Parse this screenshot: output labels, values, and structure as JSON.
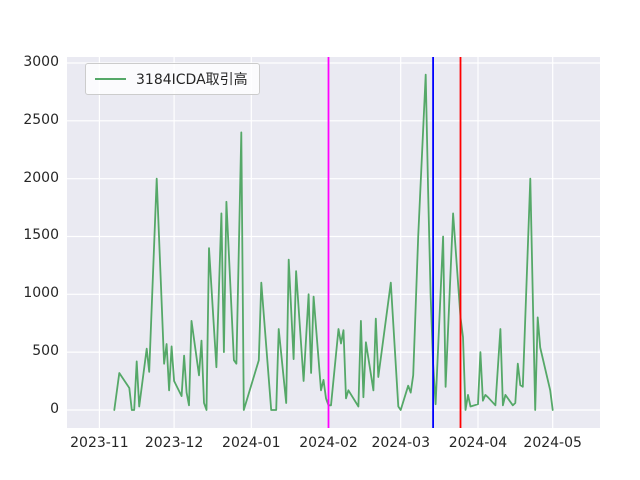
{
  "legend": {
    "label": "3184ICDA取引高",
    "line_color": "#55a868",
    "position": "upper left"
  },
  "chart_data": {
    "type": "line",
    "title": "",
    "xlabel": "",
    "ylabel": "",
    "x_axis": "date",
    "grid": true,
    "background": "#eaeaf2",
    "grid_color": "#ffffff",
    "tick_color": "#262626",
    "xlim": [
      "2023-10-19",
      "2024-05-20"
    ],
    "ylim": [
      -156,
      3052
    ],
    "y_ticks": [
      0,
      500,
      1000,
      1500,
      2000,
      2500,
      3000
    ],
    "x_ticks": [
      {
        "date": "2023-11-01",
        "label": "2023-11"
      },
      {
        "date": "2023-12-01",
        "label": "2023-12"
      },
      {
        "date": "2024-01-01",
        "label": "2024-01"
      },
      {
        "date": "2024-02-01",
        "label": "2024-02"
      },
      {
        "date": "2024-03-01",
        "label": "2024-03"
      },
      {
        "date": "2024-04-01",
        "label": "2024-04"
      },
      {
        "date": "2024-05-01",
        "label": "2024-05"
      }
    ],
    "vlines": [
      {
        "date": "2024-02-01",
        "color": "#ff00ff",
        "name": "vline-magenta"
      },
      {
        "date": "2024-03-14",
        "color": "#0000ff",
        "name": "vline-blue"
      },
      {
        "date": "2024-03-25",
        "color": "#ff0000",
        "name": "vline-red"
      }
    ],
    "series": [
      {
        "name": "3184ICDA取引高",
        "color": "#55a868",
        "points": [
          [
            "2023-11-07",
            0
          ],
          [
            "2023-11-09",
            320
          ],
          [
            "2023-11-13",
            190
          ],
          [
            "2023-11-14",
            0
          ],
          [
            "2023-11-15",
            0
          ],
          [
            "2023-11-16",
            420
          ],
          [
            "2023-11-17",
            30
          ],
          [
            "2023-11-20",
            530
          ],
          [
            "2023-11-21",
            330
          ],
          [
            "2023-11-24",
            2000
          ],
          [
            "2023-11-27",
            400
          ],
          [
            "2023-11-28",
            570
          ],
          [
            "2023-11-29",
            170
          ],
          [
            "2023-11-30",
            550
          ],
          [
            "2023-12-01",
            250
          ],
          [
            "2023-12-04",
            120
          ],
          [
            "2023-12-05",
            470
          ],
          [
            "2023-12-06",
            150
          ],
          [
            "2023-12-07",
            40
          ],
          [
            "2023-12-08",
            770
          ],
          [
            "2023-12-11",
            300
          ],
          [
            "2023-12-12",
            600
          ],
          [
            "2023-12-13",
            60
          ],
          [
            "2023-12-14",
            0
          ],
          [
            "2023-12-15",
            1400
          ],
          [
            "2023-12-18",
            370
          ],
          [
            "2023-12-20",
            1700
          ],
          [
            "2023-12-21",
            500
          ],
          [
            "2023-12-22",
            1800
          ],
          [
            "2023-12-25",
            430
          ],
          [
            "2023-12-26",
            400
          ],
          [
            "2023-12-28",
            2400
          ],
          [
            "2023-12-29",
            0
          ],
          [
            "2024-01-04",
            430
          ],
          [
            "2024-01-05",
            1100
          ],
          [
            "2024-01-09",
            0
          ],
          [
            "2024-01-11",
            0
          ],
          [
            "2024-01-12",
            700
          ],
          [
            "2024-01-15",
            60
          ],
          [
            "2024-01-16",
            1300
          ],
          [
            "2024-01-18",
            440
          ],
          [
            "2024-01-19",
            1200
          ],
          [
            "2024-01-22",
            250
          ],
          [
            "2024-01-24",
            1000
          ],
          [
            "2024-01-25",
            320
          ],
          [
            "2024-01-26",
            980
          ],
          [
            "2024-01-29",
            170
          ],
          [
            "2024-01-30",
            260
          ],
          [
            "2024-01-31",
            100
          ],
          [
            "2024-02-01",
            40
          ],
          [
            "2024-02-02",
            40
          ],
          [
            "2024-02-05",
            700
          ],
          [
            "2024-02-06",
            575
          ],
          [
            "2024-02-07",
            690
          ],
          [
            "2024-02-08",
            100
          ],
          [
            "2024-02-09",
            170
          ],
          [
            "2024-02-13",
            30
          ],
          [
            "2024-02-14",
            770
          ],
          [
            "2024-02-15",
            110
          ],
          [
            "2024-02-16",
            585
          ],
          [
            "2024-02-19",
            170
          ],
          [
            "2024-02-20",
            790
          ],
          [
            "2024-02-21",
            285
          ],
          [
            "2024-02-26",
            1100
          ],
          [
            "2024-02-29",
            30
          ],
          [
            "2024-03-01",
            0
          ],
          [
            "2024-03-04",
            210
          ],
          [
            "2024-03-05",
            150
          ],
          [
            "2024-03-06",
            300
          ],
          [
            "2024-03-07",
            900
          ],
          [
            "2024-03-08",
            1500
          ],
          [
            "2024-03-11",
            2900
          ],
          [
            "2024-03-12",
            1900
          ],
          [
            "2024-03-13",
            1000
          ],
          [
            "2024-03-14",
            400
          ],
          [
            "2024-03-15",
            50
          ],
          [
            "2024-03-18",
            1500
          ],
          [
            "2024-03-19",
            200
          ],
          [
            "2024-03-22",
            1700
          ],
          [
            "2024-03-25",
            800
          ],
          [
            "2024-03-26",
            630
          ],
          [
            "2024-03-27",
            0
          ],
          [
            "2024-03-28",
            130
          ],
          [
            "2024-03-29",
            30
          ],
          [
            "2024-04-01",
            50
          ],
          [
            "2024-04-02",
            500
          ],
          [
            "2024-04-03",
            80
          ],
          [
            "2024-04-04",
            130
          ],
          [
            "2024-04-05",
            110
          ],
          [
            "2024-04-08",
            40
          ],
          [
            "2024-04-10",
            700
          ],
          [
            "2024-04-11",
            40
          ],
          [
            "2024-04-12",
            130
          ],
          [
            "2024-04-15",
            40
          ],
          [
            "2024-04-16",
            60
          ],
          [
            "2024-04-17",
            400
          ],
          [
            "2024-04-18",
            215
          ],
          [
            "2024-04-19",
            200
          ],
          [
            "2024-04-22",
            2000
          ],
          [
            "2024-04-24",
            0
          ],
          [
            "2024-04-25",
            800
          ],
          [
            "2024-04-26",
            540
          ],
          [
            "2024-04-30",
            170
          ],
          [
            "2024-05-01",
            0
          ]
        ]
      }
    ]
  }
}
